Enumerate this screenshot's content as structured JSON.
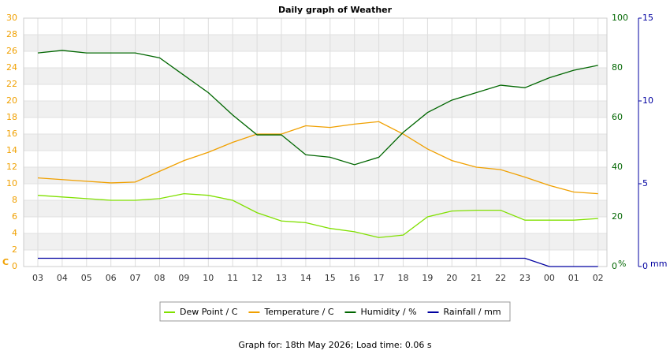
{
  "chart_data": {
    "type": "line",
    "title": "Daily graph of Weather",
    "categories": [
      "03",
      "04",
      "05",
      "06",
      "07",
      "08",
      "09",
      "10",
      "11",
      "12",
      "13",
      "14",
      "15",
      "16",
      "17",
      "18",
      "19",
      "20",
      "21",
      "22",
      "23",
      "00",
      "01",
      "02"
    ],
    "series": [
      {
        "name": "Dew Point / C",
        "color": "#80e000",
        "values": [
          8.6,
          8.4,
          8.2,
          8.0,
          8.0,
          8.2,
          8.8,
          8.6,
          8.0,
          6.5,
          5.5,
          5.3,
          4.6,
          4.2,
          3.5,
          3.8,
          6.0,
          6.7,
          6.8,
          6.8,
          5.6,
          5.6,
          5.6,
          5.8
        ]
      },
      {
        "name": "Temperature / C",
        "color": "#f0a000",
        "values": [
          10.7,
          10.5,
          10.3,
          10.1,
          10.2,
          11.5,
          12.8,
          13.8,
          15.0,
          16.0,
          16.0,
          17.0,
          16.8,
          17.2,
          17.5,
          16.0,
          14.2,
          12.8,
          12.0,
          11.7,
          10.8,
          9.8,
          9.0,
          8.8
        ]
      },
      {
        "name": "Humidity / %",
        "color": "#006600",
        "axis": "y2",
        "values": [
          86,
          87,
          86,
          86,
          86,
          84,
          77,
          70,
          61,
          53,
          53,
          45,
          44,
          41,
          44,
          54,
          62,
          67,
          70,
          73,
          72,
          76,
          79,
          81
        ]
      },
      {
        "name": "Rainfall / mm",
        "color": "#0000a0",
        "axis": "y3",
        "values": [
          0.5,
          0.5,
          0.5,
          0.5,
          0.5,
          0.5,
          0.5,
          0.5,
          0.5,
          0.5,
          0.5,
          0.5,
          0.5,
          0.5,
          0.5,
          0.5,
          0.5,
          0.5,
          0.5,
          0.5,
          0.5,
          0,
          0,
          0
        ]
      }
    ],
    "ylim": [
      0,
      30
    ],
    "yticks": [
      0,
      2,
      4,
      6,
      8,
      10,
      12,
      14,
      16,
      18,
      20,
      22,
      24,
      26,
      28,
      30
    ],
    "y_label": "C",
    "y2lim": [
      0,
      100
    ],
    "y2ticks": [
      0,
      20,
      40,
      60,
      80,
      100
    ],
    "y2_label": "%",
    "y3lim": [
      0,
      15
    ],
    "y3ticks": [
      0,
      5,
      10,
      15
    ],
    "y3_label": "mm",
    "grid": true,
    "footer": "Graph for: 18th May 2026; Load time: 0.06 s"
  }
}
